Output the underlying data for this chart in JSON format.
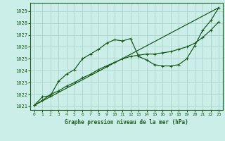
{
  "title": "Graphe pression niveau de la mer (hPa)",
  "bg_color": "#cceee8",
  "grid_color": "#b0d8d0",
  "line_color": "#1a5c1a",
  "xlim": [
    -0.5,
    23.5
  ],
  "ylim": [
    1020.7,
    1029.7
  ],
  "yticks": [
    1021,
    1022,
    1023,
    1024,
    1025,
    1026,
    1027,
    1028,
    1029
  ],
  "xticks": [
    0,
    1,
    2,
    3,
    4,
    5,
    6,
    7,
    8,
    9,
    10,
    11,
    12,
    13,
    14,
    15,
    16,
    17,
    18,
    19,
    20,
    21,
    22,
    23
  ],
  "line1_x": [
    0,
    1,
    2,
    3,
    4,
    5,
    6,
    7,
    8,
    9,
    10,
    11,
    12,
    13,
    14,
    15,
    16,
    17,
    18,
    19,
    20,
    21,
    22,
    23
  ],
  "line1_y": [
    1021.1,
    1021.8,
    1021.9,
    1023.1,
    1023.7,
    1024.1,
    1025.0,
    1025.4,
    1025.8,
    1026.3,
    1026.6,
    1026.5,
    1026.7,
    1025.2,
    1024.9,
    1024.5,
    1024.4,
    1024.4,
    1024.5,
    1025.0,
    1026.1,
    1027.4,
    1028.2,
    1029.3
  ],
  "line2_x": [
    0,
    1,
    2,
    3,
    4,
    5,
    6,
    7,
    8,
    9,
    10,
    11,
    12,
    13,
    14,
    15,
    16,
    17,
    18,
    19,
    20,
    21,
    22,
    23
  ],
  "line2_y": [
    1021.1,
    1021.5,
    1022.0,
    1022.3,
    1022.7,
    1023.0,
    1023.4,
    1023.7,
    1024.1,
    1024.4,
    1024.7,
    1025.0,
    1025.2,
    1025.3,
    1025.4,
    1025.4,
    1025.5,
    1025.6,
    1025.8,
    1026.0,
    1026.3,
    1026.8,
    1027.4,
    1028.1
  ],
  "line3_x": [
    0,
    23
  ],
  "line3_y": [
    1021.1,
    1029.3
  ]
}
